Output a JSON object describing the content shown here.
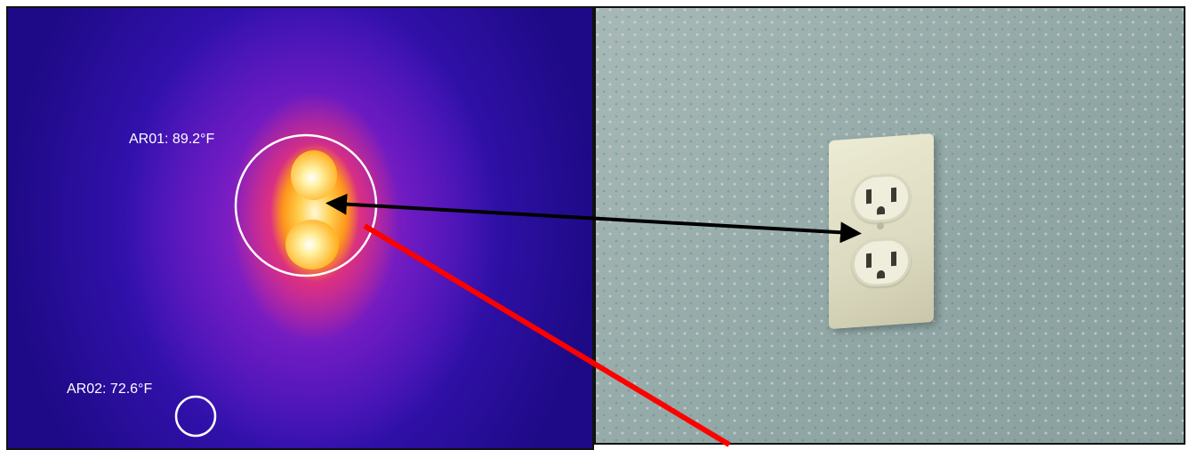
{
  "thermal_image": {
    "measurements": [
      {
        "label": "AR01: 89.2°F"
      },
      {
        "label": "AR02: 72.6°F"
      }
    ]
  },
  "colors": {
    "thermal_background": "#2a12a8",
    "hotspot": "#ffc040",
    "marker_circle": "#ffffff",
    "black_arrow": "#000000",
    "red_arrow": "#ff0000",
    "wall": "#9bb0ad",
    "faceplate": "#e2e0c6"
  },
  "icons": [
    "measurement-circle-icon",
    "double-headed-arrow-icon",
    "red-arrow-icon",
    "outlet-icon"
  ]
}
